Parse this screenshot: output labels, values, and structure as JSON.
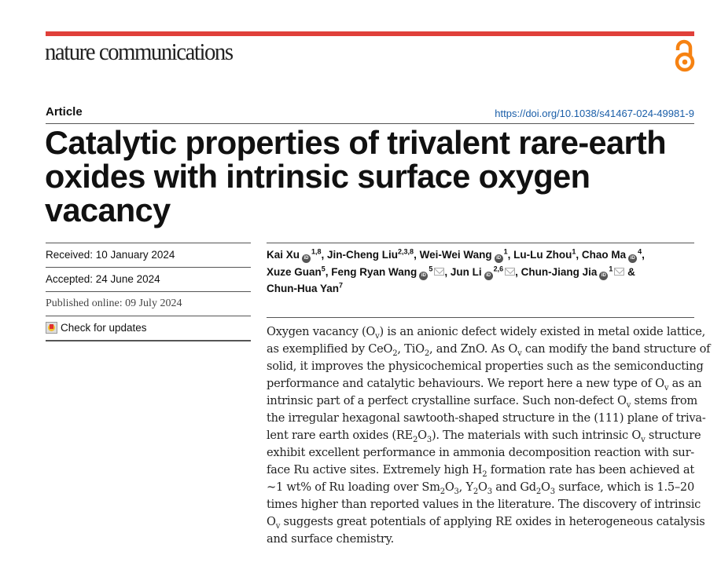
{
  "header": {
    "journal": "nature communications",
    "open_access_icon": "open-access-icon",
    "accent_color": "#e0403a",
    "oa_color": "#f68212"
  },
  "article_type": "Article",
  "doi": "https://doi.org/10.1038/s41467-024-49981-9",
  "title": [
    "Catalytic properties of trivalent rare-earth",
    "oxides with intrinsic surface oxygen vacancy"
  ],
  "dates": {
    "received": "Received: 10 January 2024",
    "accepted": "Accepted: 24 June 2024",
    "published": "Published online: 09 July 2024"
  },
  "check_updates": "Check for updates",
  "authors": [
    {
      "name": "Kai Xu",
      "orcid": true,
      "sup": "1,8",
      "mail": false,
      "sep": ", "
    },
    {
      "name": "Jin-Cheng Liu",
      "orcid": false,
      "sup": "2,3,8",
      "mail": false,
      "sep": ", "
    },
    {
      "name": "Wei-Wei Wang",
      "orcid": true,
      "sup": "1",
      "mail": false,
      "sep": ", "
    },
    {
      "name": "Lu-Lu Zhou",
      "orcid": false,
      "sup": "1",
      "mail": false,
      "sep": ", "
    },
    {
      "name": "Chao Ma",
      "orcid": true,
      "sup": "4",
      "mail": false,
      "sep": ", "
    },
    {
      "name": "Xuze Guan",
      "orcid": false,
      "sup": "5",
      "mail": false,
      "sep": ", "
    },
    {
      "name": "Feng Ryan Wang",
      "orcid": true,
      "sup": "5",
      "mail": true,
      "sep": ", "
    },
    {
      "name": "Jun Li",
      "orcid": true,
      "sup": "2,6",
      "mail": true,
      "sep": ", "
    },
    {
      "name": "Chun-Jiang Jia",
      "orcid": true,
      "sup": "1",
      "mail": true,
      "sep": " & "
    },
    {
      "name": "Chun-Hua Yan",
      "orcid": false,
      "sup": "7",
      "mail": false,
      "sep": ""
    }
  ],
  "abstract": [
    [
      [
        "Oxygen vacancy (O"
      ],
      [
        "v",
        1
      ],
      [
        ") is an anionic defect widely existed in metal oxide lattice,"
      ]
    ],
    [
      [
        "as exemplified by CeO"
      ],
      [
        "2",
        1
      ],
      [
        ", TiO"
      ],
      [
        "2",
        1
      ],
      [
        ", and ZnO. As O"
      ],
      [
        "v",
        1
      ],
      [
        " can modify the band structure of"
      ]
    ],
    [
      [
        "solid, it improves the physicochemical properties such as the semiconducting"
      ]
    ],
    [
      [
        "performance and catalytic behaviours. We report here a new type of O"
      ],
      [
        "v",
        1
      ],
      [
        " as an"
      ]
    ],
    [
      [
        "intrinsic part of a perfect crystalline surface. Such non-defect O"
      ],
      [
        "v",
        1
      ],
      [
        " stems from"
      ]
    ],
    [
      [
        "the irregular hexagonal sawtooth-shaped structure in the (111) plane of triva-"
      ]
    ],
    [
      [
        "lent rare earth oxides (RE"
      ],
      [
        "2",
        1
      ],
      [
        "O"
      ],
      [
        "3",
        1
      ],
      [
        "). The materials with such intrinsic O"
      ],
      [
        "v",
        1
      ],
      [
        " structure"
      ]
    ],
    [
      [
        "exhibit excellent performance in ammonia decomposition reaction with sur-"
      ]
    ],
    [
      [
        "face Ru active sites. Extremely high H"
      ],
      [
        "2",
        1
      ],
      [
        " formation rate has been achieved at"
      ]
    ],
    [
      [
        "~1 wt% of Ru loading over Sm"
      ],
      [
        "2",
        1
      ],
      [
        "O"
      ],
      [
        "3",
        1
      ],
      [
        ", Y"
      ],
      [
        "2",
        1
      ],
      [
        "O"
      ],
      [
        "3",
        1
      ],
      [
        " and Gd"
      ],
      [
        "2",
        1
      ],
      [
        "O"
      ],
      [
        "3",
        1
      ],
      [
        " surface, which is 1.5–20"
      ]
    ],
    [
      [
        "times higher than reported values in the literature. The discovery of intrinsic"
      ]
    ],
    [
      [
        "O"
      ],
      [
        "v",
        1
      ],
      [
        " suggests great potentials of applying RE oxides in heterogeneous catalysis"
      ]
    ],
    [
      [
        "and surface chemistry."
      ]
    ]
  ]
}
